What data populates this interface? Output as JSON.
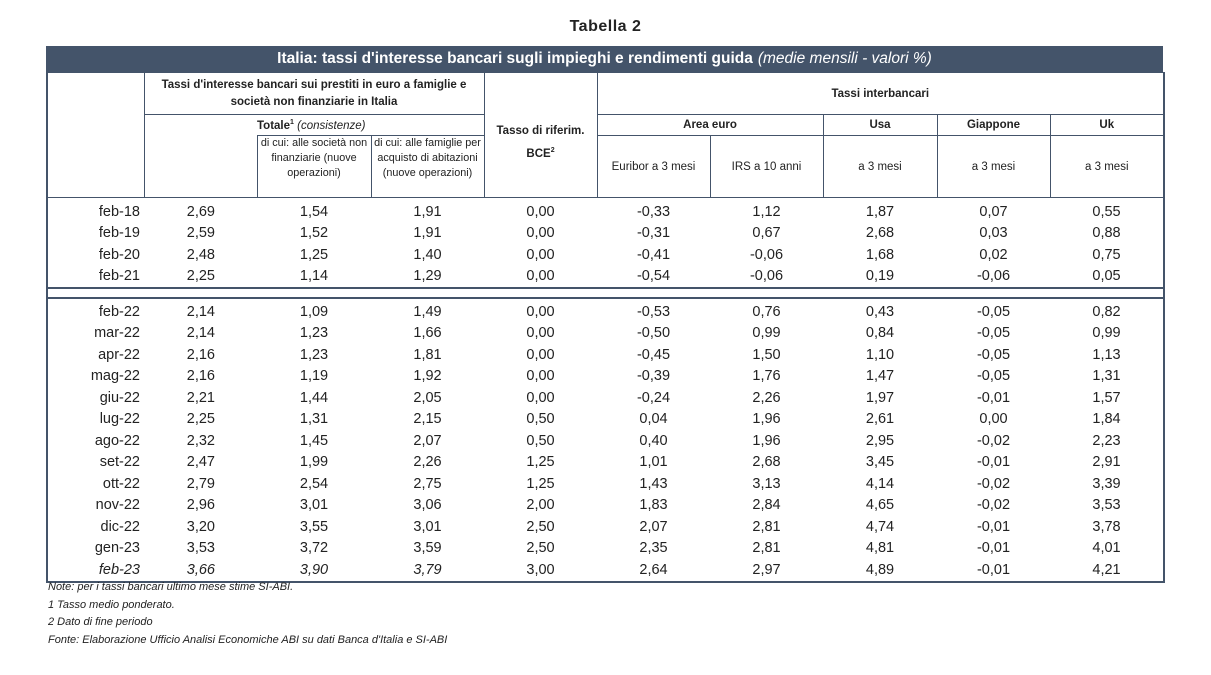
{
  "title": "Tabella 2",
  "header_bar": {
    "main": "Italia: tassi d'interesse bancari sugli impieghi e rendimenti guida",
    "sub": "(medie mensili - valori %)"
  },
  "headers": {
    "loans_group": "Tassi d'interesse bancari sui prestiti in euro a famiglie e società non finanziarie in Italia",
    "totale": "Totale",
    "totale_sup": "1",
    "totale_note": "(consistenze)",
    "companies": "di cui: alle società non finanziarie (nuove operazioni)",
    "households": "di cui: alle famiglie per acquisto di abitazioni (nuove operazioni)",
    "ecb_rate": "Tasso di riferim. BCE",
    "ecb_sup": "2",
    "interbank_group": "Tassi interbancari",
    "area_euro": "Area euro",
    "usa": "Usa",
    "japan": "Giappone",
    "uk": "Uk",
    "euribor": "Euribor a 3 mesi",
    "irs": "IRS a 10 anni",
    "usa_sub": "a 3 mesi",
    "japan_sub": "a 3 mesi",
    "uk_sub": "a 3 mesi"
  },
  "rows_annual": [
    [
      "feb-18",
      "2,69",
      "1,54",
      "1,91",
      "0,00",
      "-0,33",
      "1,12",
      "1,87",
      "0,07",
      "0,55"
    ],
    [
      "feb-19",
      "2,59",
      "1,52",
      "1,91",
      "0,00",
      "-0,31",
      "0,67",
      "2,68",
      "0,03",
      "0,88"
    ],
    [
      "feb-20",
      "2,48",
      "1,25",
      "1,40",
      "0,00",
      "-0,41",
      "-0,06",
      "1,68",
      "0,02",
      "0,75"
    ],
    [
      "feb-21",
      "2,25",
      "1,14",
      "1,29",
      "0,00",
      "-0,54",
      "-0,06",
      "0,19",
      "-0,06",
      "0,05"
    ]
  ],
  "rows_monthly": [
    [
      "feb-22",
      "2,14",
      "1,09",
      "1,49",
      "0,00",
      "-0,53",
      "0,76",
      "0,43",
      "-0,05",
      "0,82"
    ],
    [
      "mar-22",
      "2,14",
      "1,23",
      "1,66",
      "0,00",
      "-0,50",
      "0,99",
      "0,84",
      "-0,05",
      "0,99"
    ],
    [
      "apr-22",
      "2,16",
      "1,23",
      "1,81",
      "0,00",
      "-0,45",
      "1,50",
      "1,10",
      "-0,05",
      "1,13"
    ],
    [
      "mag-22",
      "2,16",
      "1,19",
      "1,92",
      "0,00",
      "-0,39",
      "1,76",
      "1,47",
      "-0,05",
      "1,31"
    ],
    [
      "giu-22",
      "2,21",
      "1,44",
      "2,05",
      "0,00",
      "-0,24",
      "2,26",
      "1,97",
      "-0,01",
      "1,57"
    ],
    [
      "lug-22",
      "2,25",
      "1,31",
      "2,15",
      "0,50",
      "0,04",
      "1,96",
      "2,61",
      "0,00",
      "1,84"
    ],
    [
      "ago-22",
      "2,32",
      "1,45",
      "2,07",
      "0,50",
      "0,40",
      "1,96",
      "2,95",
      "-0,02",
      "2,23"
    ],
    [
      "set-22",
      "2,47",
      "1,99",
      "2,26",
      "1,25",
      "1,01",
      "2,68",
      "3,45",
      "-0,01",
      "2,91"
    ],
    [
      "ott-22",
      "2,79",
      "2,54",
      "2,75",
      "1,25",
      "1,43",
      "3,13",
      "4,14",
      "-0,02",
      "3,39"
    ],
    [
      "nov-22",
      "2,96",
      "3,01",
      "3,06",
      "2,00",
      "1,83",
      "2,84",
      "4,65",
      "-0,02",
      "3,53"
    ],
    [
      "dic-22",
      "3,20",
      "3,55",
      "3,01",
      "2,50",
      "2,07",
      "2,81",
      "4,74",
      "-0,01",
      "3,78"
    ],
    [
      "gen-23",
      "3,53",
      "3,72",
      "3,59",
      "2,50",
      "2,35",
      "2,81",
      "4,81",
      "-0,01",
      "4,01"
    ],
    [
      "feb-23",
      "3,66",
      "3,90",
      "3,79",
      "3,00",
      "2,64",
      "2,97",
      "4,89",
      "-0,01",
      "4,21"
    ]
  ],
  "italic_rows": [
    "feb-23"
  ],
  "notes": [
    "Note: per i tassi bancari ultimo mese stime SI-ABI.",
    "1 Tasso medio ponderato.",
    "2 Dato di fine periodo",
    "Fonte: Elaborazione Ufficio Analisi Economiche ABI su dati Banca d'Italia e SI-ABI"
  ]
}
